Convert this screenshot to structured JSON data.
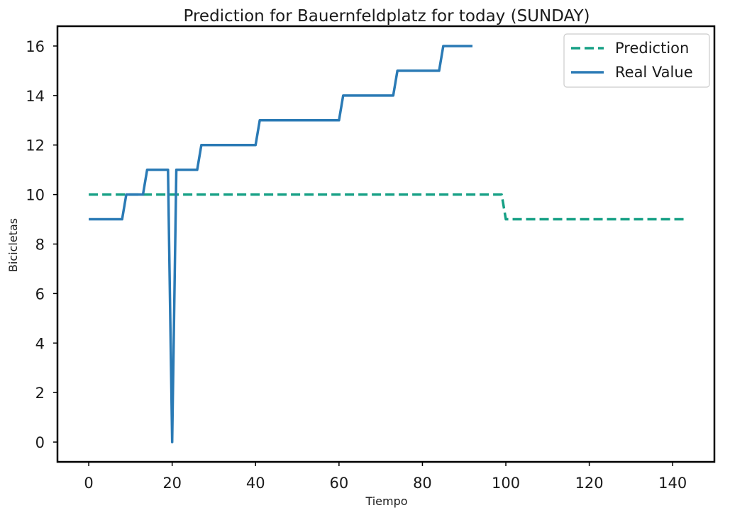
{
  "chart_data": {
    "type": "line",
    "title": "Prediction for Bauernfeldplatz for today (SUNDAY)",
    "xlabel": "Tiempo",
    "ylabel": "Bicicletas",
    "xlim": [
      -7.5,
      150
    ],
    "ylim": [
      -0.8,
      16.8
    ],
    "xticks": [
      0,
      20,
      40,
      60,
      80,
      100,
      120,
      140
    ],
    "yticks": [
      0,
      2,
      4,
      6,
      8,
      10,
      12,
      14,
      16
    ],
    "grid": false,
    "legend_position": "top-right",
    "series": [
      {
        "name": "Prediction",
        "style": "dashed",
        "color": "#16a085",
        "points": [
          [
            0,
            10
          ],
          [
            99,
            10
          ],
          [
            100,
            9
          ],
          [
            143,
            9
          ]
        ]
      },
      {
        "name": "Real Value",
        "style": "solid",
        "color": "#2a7ab5",
        "points": [
          [
            0,
            9
          ],
          [
            8,
            9
          ],
          [
            9,
            10
          ],
          [
            13,
            10
          ],
          [
            14,
            11
          ],
          [
            19,
            11
          ],
          [
            20,
            0
          ],
          [
            21,
            11
          ],
          [
            26,
            11
          ],
          [
            27,
            12
          ],
          [
            40,
            12
          ],
          [
            41,
            13
          ],
          [
            60,
            13
          ],
          [
            61,
            14
          ],
          [
            73,
            14
          ],
          [
            74,
            15
          ],
          [
            84,
            15
          ],
          [
            85,
            16
          ],
          [
            92,
            16
          ]
        ]
      }
    ]
  }
}
